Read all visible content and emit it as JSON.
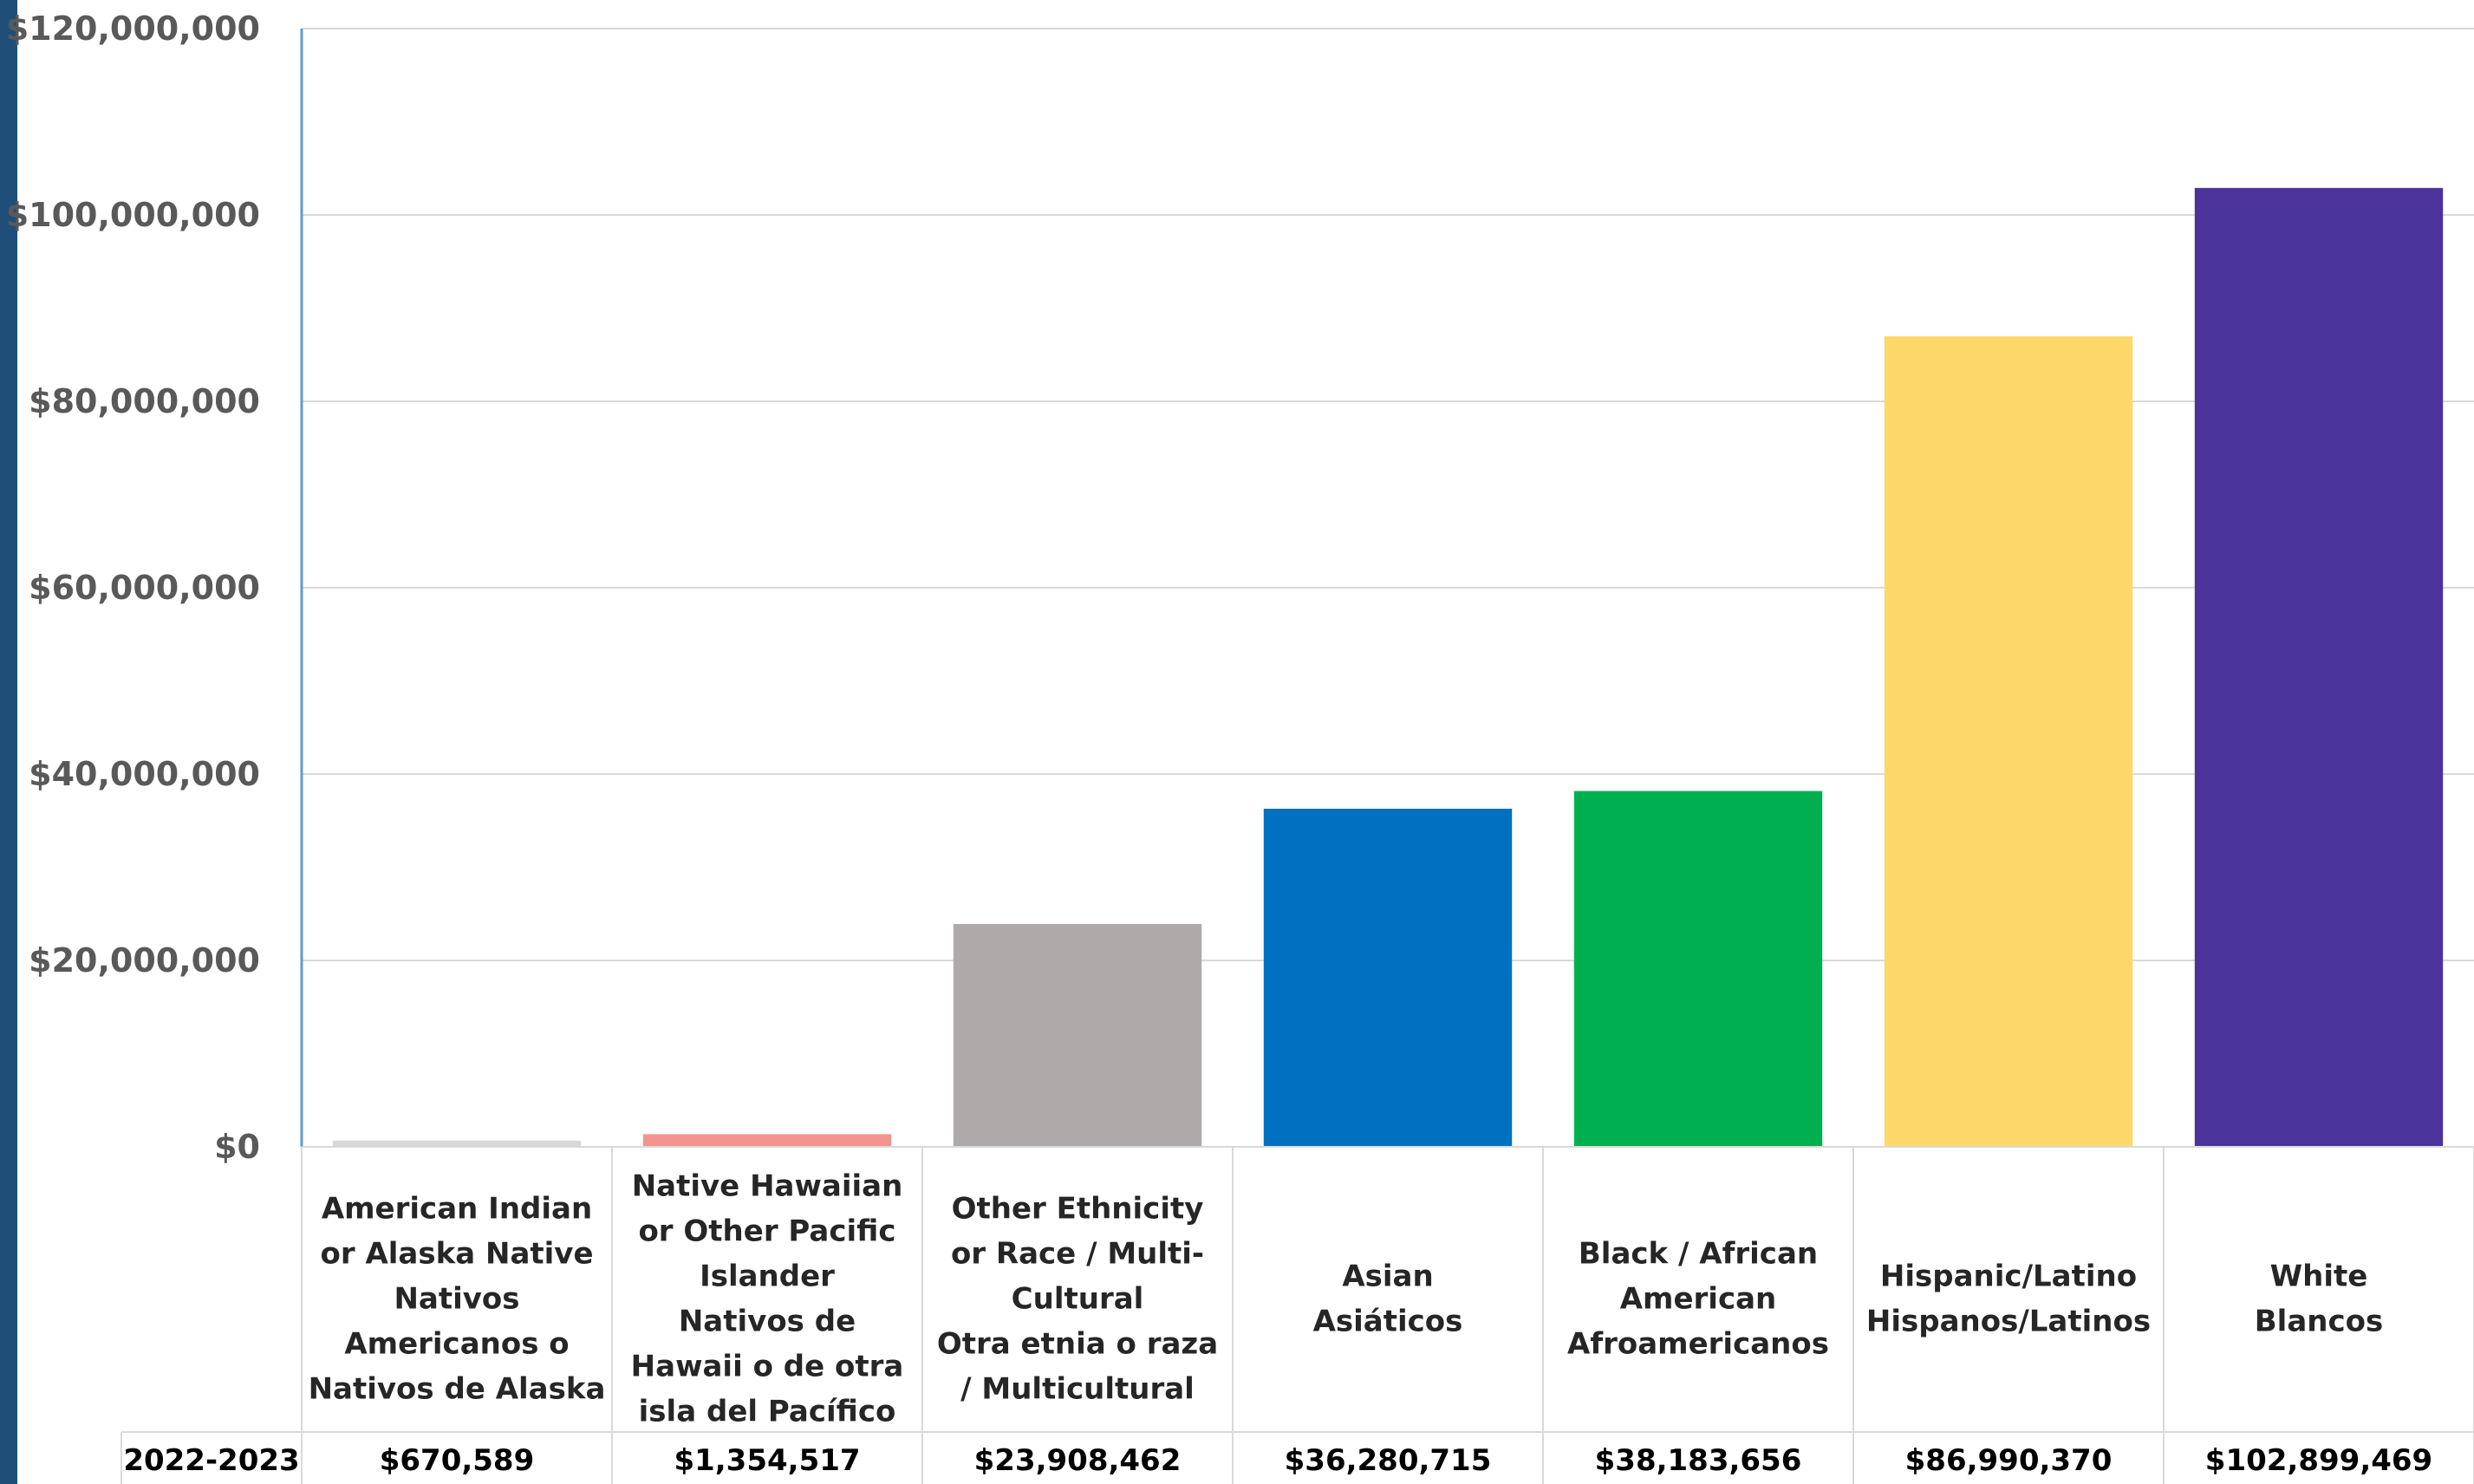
{
  "chart_data": {
    "type": "bar",
    "title": "",
    "xlabel": "",
    "ylabel": "",
    "ylim": [
      0,
      120000000
    ],
    "yticks": [
      0,
      20000000,
      40000000,
      60000000,
      80000000,
      100000000,
      120000000
    ],
    "ytick_labels": [
      "$0",
      "$20,000,000",
      "$40,000,000",
      "$60,000,000",
      "$80,000,000",
      "$100,000,000",
      "$120,000,000"
    ],
    "grid": true,
    "legend": "none",
    "categories": [
      [
        "American Indian",
        "or Alaska Native",
        "Nativos",
        "Americanos o",
        "Nativos de Alaska"
      ],
      [
        "Native Hawaiian",
        "or Other Pacific",
        "Islander",
        "Nativos de",
        "Hawaii o de otra",
        "isla del Pacífico"
      ],
      [
        "Other Ethnicity",
        "or Race / Multi-",
        "Cultural",
        "Otra etnia o raza",
        "/ Multicultural"
      ],
      [
        "Asian",
        "Asiáticos"
      ],
      [
        "Black / African",
        "American",
        "Afroamericanos"
      ],
      [
        "Hispanic/Latino",
        "Hispanos/Latinos"
      ],
      [
        "White",
        "Blancos"
      ]
    ],
    "values": [
      670589,
      1354517,
      23908462,
      36280715,
      38183656,
      86990370,
      102899469
    ],
    "colors": [
      "#D9D9D9",
      "#F4928E",
      "#ADAAA9",
      "#0070C0",
      "#00B050",
      "#FCD86A",
      "#4A339B"
    ],
    "table": {
      "row_label": "2022-2023",
      "cells": [
        "$670,589",
        "$1,354,517",
        "$23,908,462",
        "$36,280,715",
        "$38,183,656",
        "$86,990,370",
        "$102,899,469"
      ]
    }
  }
}
